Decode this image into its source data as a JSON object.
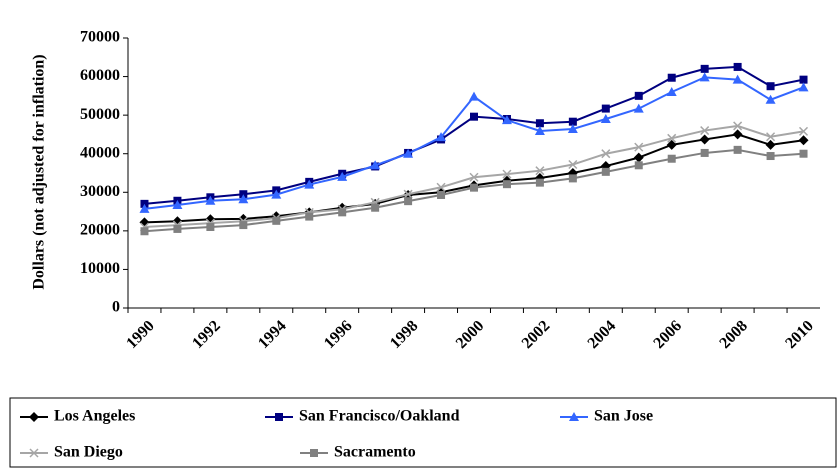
{
  "chart_data": {
    "type": "line",
    "ylabel": "Dollars (not adjusted for inflation)",
    "categories": [
      "1990",
      null,
      "1992",
      null,
      "1994",
      null,
      "1996",
      null,
      "1998",
      null,
      "2000",
      null,
      "2002",
      null,
      "2004",
      null,
      "2006",
      null,
      "2008",
      null,
      "2010"
    ],
    "ylim": [
      0,
      70000
    ],
    "yticks": [
      0,
      10000,
      20000,
      30000,
      40000,
      50000,
      60000,
      70000
    ],
    "series": [
      {
        "name": "Los Angeles",
        "color": "#000000",
        "marker": "diamond",
        "values": [
          22200,
          22500,
          23000,
          23100,
          23800,
          24800,
          26000,
          27000,
          29300,
          30000,
          31800,
          33000,
          33700,
          35000,
          36800,
          39000,
          42300,
          43700,
          45000,
          42300,
          43500
        ]
      },
      {
        "name": "San Francisco/Oakland",
        "color": "#000080",
        "marker": "square",
        "values": [
          27000,
          27800,
          28700,
          29500,
          30500,
          32700,
          34800,
          36700,
          40200,
          43700,
          49600,
          49000,
          47900,
          48300,
          51700,
          55000,
          59700,
          62000,
          62500,
          57500,
          59200
        ]
      },
      {
        "name": "San Jose",
        "color": "#3366ff",
        "marker": "triangle",
        "values": [
          25700,
          26700,
          27800,
          28200,
          29400,
          32000,
          34000,
          37000,
          40000,
          44300,
          54800,
          48700,
          45900,
          46400,
          49000,
          51700,
          56000,
          59800,
          59200,
          54000,
          57200
        ]
      },
      {
        "name": "San Diego",
        "color": "#a6a6a6",
        "marker": "x",
        "values": [
          21000,
          21500,
          22000,
          22500,
          23300,
          24800,
          25600,
          27400,
          29500,
          31300,
          33900,
          34700,
          35600,
          37200,
          40000,
          41700,
          44000,
          46000,
          47200,
          44400,
          45800
        ]
      },
      {
        "name": "Sacramento",
        "color": "#808080",
        "marker": "square",
        "values": [
          19900,
          20500,
          21000,
          21500,
          22600,
          23700,
          24800,
          26000,
          27700,
          29300,
          31200,
          32100,
          32500,
          33600,
          35300,
          37000,
          38700,
          40200,
          41000,
          39400,
          40000
        ]
      }
    ]
  }
}
